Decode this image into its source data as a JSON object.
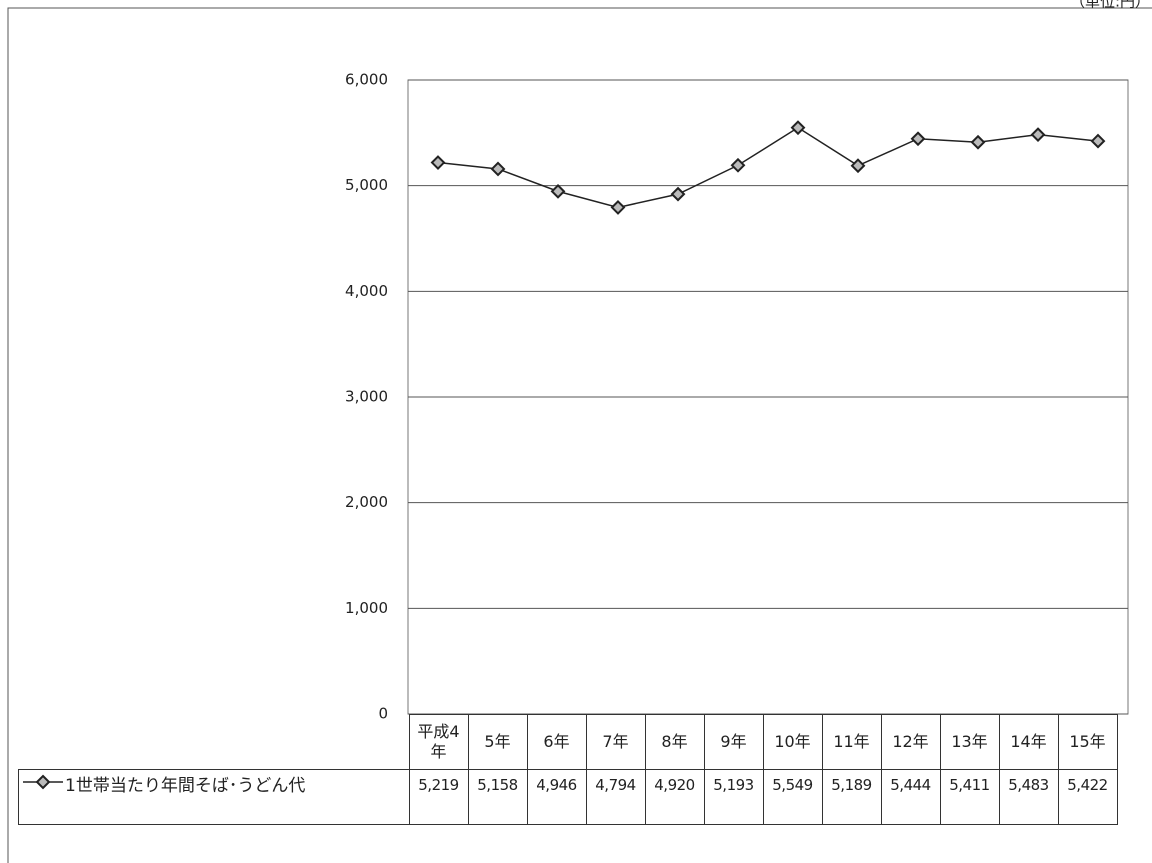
{
  "chart_data": {
    "type": "line",
    "unit_note": "（単位:円）",
    "categories": [
      "平成4年",
      "5年",
      "6年",
      "7年",
      "8年",
      "9年",
      "10年",
      "11年",
      "12年",
      "13年",
      "14年",
      "15年"
    ],
    "series": [
      {
        "name": "1世帯当たり年間そば･うどん代",
        "color": "#222222",
        "values": [
          5219,
          5158,
          4946,
          4794,
          4920,
          5193,
          5549,
          5189,
          5444,
          5411,
          5483,
          5422
        ],
        "value_labels": [
          "5,219",
          "5,158",
          "4,946",
          "4,794",
          "4,920",
          "5,193",
          "5,549",
          "5,189",
          "5,444",
          "5,411",
          "5,483",
          "5,422"
        ]
      }
    ],
    "ylim": [
      0,
      6000
    ],
    "yticks": [
      0,
      {
        "value": 1000,
        "label": "1,000"
      },
      {
        "value": 2000,
        "label": "2,000"
      },
      {
        "value": 3000,
        "label": "3,000"
      },
      {
        "value": 4000,
        "label": "4,000"
      },
      {
        "value": 5000,
        "label": "5,000"
      },
      {
        "value": 6000,
        "label": "6,000"
      }
    ],
    "grid": true
  }
}
